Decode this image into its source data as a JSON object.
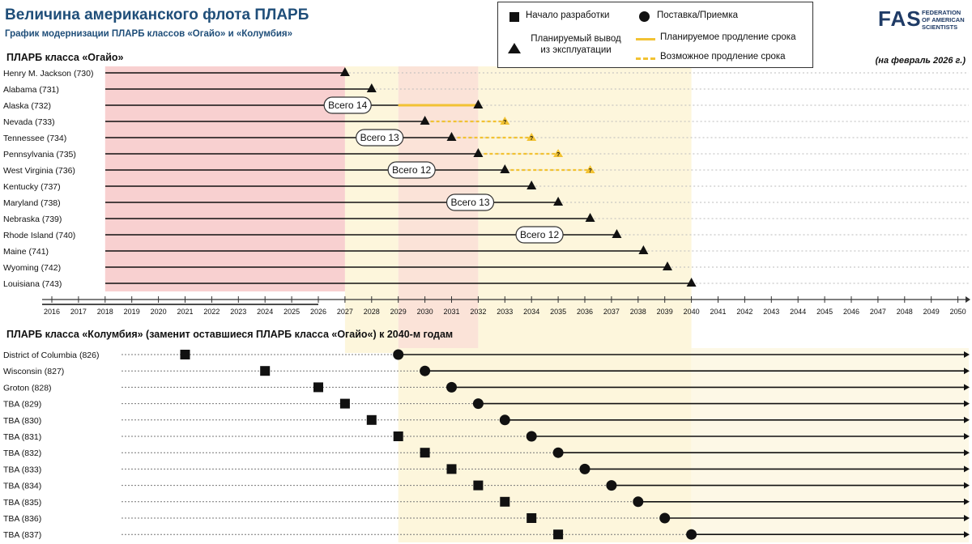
{
  "title": "Величина американского флота ПЛАРБ",
  "subtitle": "График модернизации ПЛАРБ классов «Огайо» и «Колумбия»",
  "as_of": "(на февраль 2026 г.)",
  "ohio_section_title": "ПЛАРБ класса «Огайо»",
  "columbia_section_title": "ПЛАРБ класса «Колумбия» (заменит оставшиеся ПЛАРБ класса «Огайо«) к 2040-м годам",
  "logo": {
    "mark": "FAS",
    "text_lines": [
      "FEDERATION",
      "OF AMERICAN",
      "SCIENTISTS"
    ]
  },
  "legend": {
    "dev_start": "Начало разработки",
    "delivery": "Поставка/Приемка",
    "retirement": "Планируемый вывод из эксплуатации",
    "planned_ext": "Планируемое продление срока",
    "possible_ext": "Возможное продление срока"
  },
  "colors": {
    "pink_band": "#f8d0d0",
    "yellow_band": "#fdf6dc",
    "ext_line": "#f2c233",
    "axis": "#333333"
  },
  "chart_data": {
    "type": "timeline",
    "x_range": [
      2016,
      2050
    ],
    "shaded_periods": [
      {
        "from": 2018,
        "to": 2027,
        "color": "pink"
      },
      {
        "from": 2027,
        "to": 2029,
        "color": "yellow"
      },
      {
        "from": 2029,
        "to": 2032,
        "color": "pink-light"
      },
      {
        "from": 2032,
        "to": 2040,
        "color": "yellow"
      }
    ],
    "ohio": [
      {
        "name": "Henry M. Jackson (730)",
        "retire": 2027
      },
      {
        "name": "Alabama (731)",
        "retire": 2028
      },
      {
        "name": "Alaska (732)",
        "retire": 2032,
        "planned_extension_from": 2029
      },
      {
        "name": "Nevada (733)",
        "retire": 2030,
        "possible_extension_to": 2033
      },
      {
        "name": "Tennessee (734)",
        "retire": 2031,
        "possible_extension_to": 2034
      },
      {
        "name": "Pennsylvania (735)",
        "retire": 2032,
        "possible_extension_to": 2035
      },
      {
        "name": "West Virginia (736)",
        "retire": 2033,
        "possible_extension_to": 2036.2
      },
      {
        "name": "Kentucky (737)",
        "retire": 2034
      },
      {
        "name": "Maryland (738)",
        "retire": 2035
      },
      {
        "name": "Nebraska (739)",
        "retire": 2036.2
      },
      {
        "name": "Rhode Island (740)",
        "retire": 2037.2
      },
      {
        "name": "Maine (741)",
        "retire": 2038.2
      },
      {
        "name": "Wyoming (742)",
        "retire": 2039.1
      },
      {
        "name": "Louisiana (743)",
        "retire": 2040
      }
    ],
    "totals": [
      {
        "label": "Всего 14",
        "x": 2027.1,
        "row": 2
      },
      {
        "label": "Всего 13",
        "x": 2028.3,
        "row": 4
      },
      {
        "label": "Всего 12",
        "x": 2029.5,
        "row": 6
      },
      {
        "label": "Всего 13",
        "x": 2031.7,
        "row": 8
      },
      {
        "label": "Всего 12",
        "x": 2034.3,
        "row": 10
      }
    ],
    "columbia": [
      {
        "name": "District of Columbia (826)",
        "dev_start": 2021,
        "delivery": 2029
      },
      {
        "name": "Wisconsin (827)",
        "dev_start": 2024,
        "delivery": 2030
      },
      {
        "name": "Groton (828)",
        "dev_start": 2026,
        "delivery": 2031
      },
      {
        "name": "TBA (829)",
        "dev_start": 2027,
        "delivery": 2032
      },
      {
        "name": "TBA (830)",
        "dev_start": 2028,
        "delivery": 2033
      },
      {
        "name": "TBA (831)",
        "dev_start": 2029,
        "delivery": 2034
      },
      {
        "name": "TBA (832)",
        "dev_start": 2030,
        "delivery": 2035
      },
      {
        "name": "TBA (833)",
        "dev_start": 2031,
        "delivery": 2036
      },
      {
        "name": "TBA (834)",
        "dev_start": 2032,
        "delivery": 2037
      },
      {
        "name": "TBA (835)",
        "dev_start": 2033,
        "delivery": 2038
      },
      {
        "name": "TBA (836)",
        "dev_start": 2034,
        "delivery": 2039
      },
      {
        "name": "TBA (837)",
        "dev_start": 2035,
        "delivery": 2040
      }
    ]
  }
}
